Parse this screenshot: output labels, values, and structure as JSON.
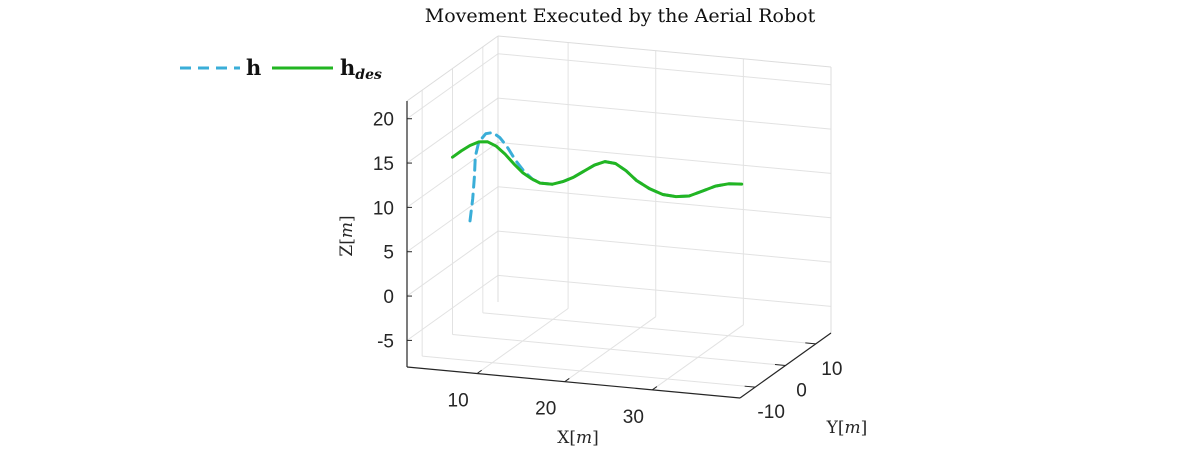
{
  "chart_data": {
    "type": "line",
    "title": "Movement Executed by the Aerial Robot",
    "xlabel": {
      "name": "X",
      "unit": "m"
    },
    "ylabel": {
      "name": "Y",
      "unit": "m"
    },
    "zlabel": {
      "name": "Z",
      "unit": "m"
    },
    "xticks": [
      "10",
      "20",
      "30"
    ],
    "yticks": [
      "-10",
      "0",
      "10"
    ],
    "zticks": [
      "-5",
      "0",
      "5",
      "10",
      "15",
      "20"
    ],
    "xlim": [
      2,
      40
    ],
    "ylim": [
      -15,
      15
    ],
    "zlim": [
      -8,
      22
    ],
    "grid": true,
    "legend_position": "top-left",
    "legend": [
      {
        "main": "h",
        "sub": ""
      },
      {
        "main": "h",
        "sub": "des"
      }
    ],
    "series": [
      {
        "name": "h",
        "color": "#3aaed8",
        "style": "dashed",
        "points": [
          [
            4.0,
            0.0,
            5.0
          ],
          [
            4.3,
            0.0,
            7.5
          ],
          [
            4.5,
            0.0,
            10.0
          ],
          [
            4.6,
            0.0,
            12.3
          ],
          [
            5.0,
            0.0,
            14.0
          ],
          [
            5.8,
            0.0,
            15.0
          ],
          [
            6.6,
            0.0,
            15.2
          ],
          [
            7.4,
            0.0,
            14.7
          ],
          [
            8.2,
            0.0,
            13.8
          ],
          [
            9.2,
            0.0,
            12.3
          ],
          [
            10.2,
            0.0,
            11.1
          ],
          [
            11.2,
            0.0,
            10.3
          ],
          [
            12.2,
            0.0,
            10.0
          ],
          [
            13.4,
            0.0,
            10.0
          ],
          [
            14.6,
            0.0,
            10.4
          ],
          [
            15.8,
            0.0,
            11.0
          ],
          [
            17.0,
            0.0,
            11.8
          ],
          [
            18.2,
            0.0,
            12.6
          ],
          [
            19.4,
            0.0,
            13.1
          ],
          [
            20.6,
            0.0,
            13.0
          ],
          [
            21.8,
            0.0,
            12.3
          ],
          [
            23.0,
            0.0,
            11.3
          ],
          [
            24.5,
            0.0,
            10.5
          ],
          [
            26.0,
            0.0,
            10.0
          ],
          [
            27.5,
            0.0,
            9.9
          ],
          [
            29.0,
            0.0,
            10.1
          ],
          [
            30.5,
            0.0,
            10.8
          ],
          [
            32.0,
            0.0,
            11.5
          ],
          [
            33.5,
            0.0,
            11.9
          ],
          [
            35.0,
            0.0,
            12.0
          ]
        ]
      },
      {
        "name": "h_des",
        "color": "#22b522",
        "style": "solid",
        "points": [
          [
            2.0,
            0.0,
            12.0
          ],
          [
            3.0,
            0.0,
            12.8
          ],
          [
            4.0,
            0.0,
            13.5
          ],
          [
            5.0,
            0.0,
            14.0
          ],
          [
            6.0,
            0.0,
            14.1
          ],
          [
            7.0,
            0.0,
            13.7
          ],
          [
            8.0,
            0.0,
            12.9
          ],
          [
            9.0,
            0.0,
            11.9
          ],
          [
            10.0,
            0.0,
            11.0
          ],
          [
            11.0,
            0.0,
            10.4
          ],
          [
            12.0,
            0.0,
            10.0
          ],
          [
            13.4,
            0.0,
            10.0
          ],
          [
            14.6,
            0.0,
            10.4
          ],
          [
            15.8,
            0.0,
            11.0
          ],
          [
            17.0,
            0.0,
            11.8
          ],
          [
            18.2,
            0.0,
            12.6
          ],
          [
            19.4,
            0.0,
            13.1
          ],
          [
            20.6,
            0.0,
            13.0
          ],
          [
            21.8,
            0.0,
            12.3
          ],
          [
            23.0,
            0.0,
            11.3
          ],
          [
            24.5,
            0.0,
            10.5
          ],
          [
            26.0,
            0.0,
            10.0
          ],
          [
            27.5,
            0.0,
            9.9
          ],
          [
            29.0,
            0.0,
            10.1
          ],
          [
            30.5,
            0.0,
            10.8
          ],
          [
            32.0,
            0.0,
            11.5
          ],
          [
            33.5,
            0.0,
            11.9
          ],
          [
            35.0,
            0.0,
            12.0
          ]
        ]
      }
    ]
  }
}
